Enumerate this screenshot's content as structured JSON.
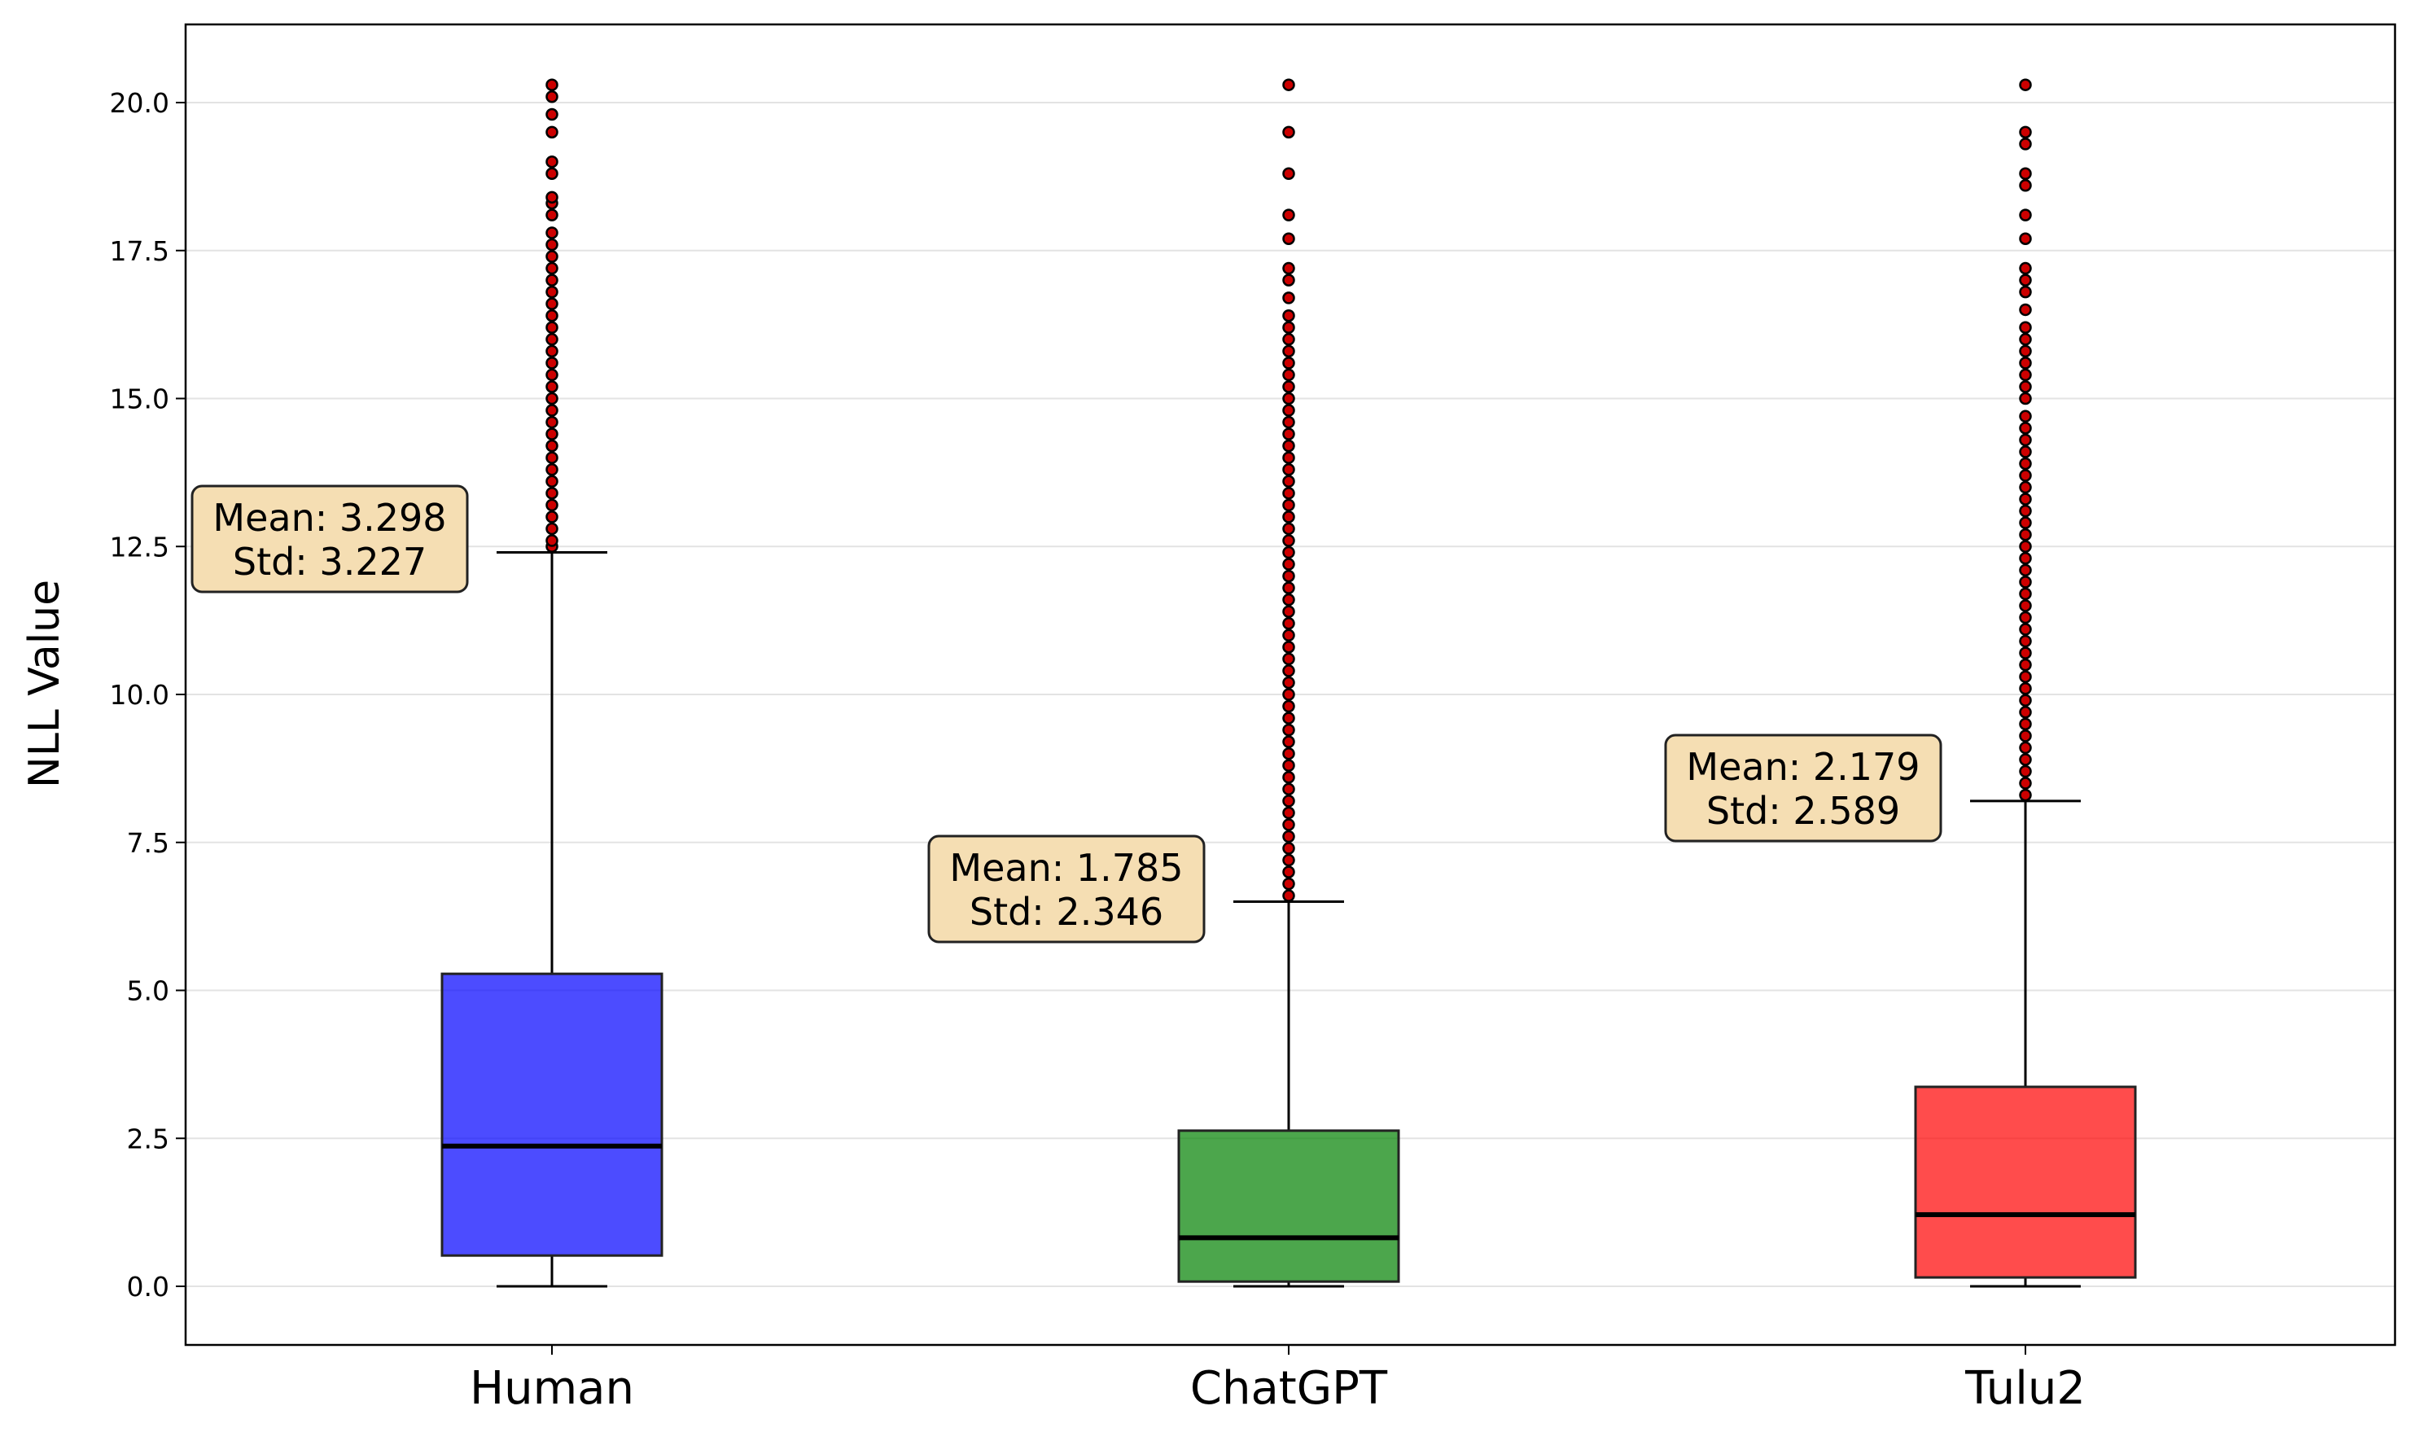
{
  "chart_data": {
    "type": "box",
    "title": "",
    "xlabel": "",
    "ylabel": "NLL Value",
    "ylim": [
      -1.0,
      21.3
    ],
    "yticks": [
      0.0,
      2.5,
      5.0,
      7.5,
      10.0,
      12.5,
      15.0,
      17.5,
      20.0
    ],
    "ytick_labels": [
      "0.0",
      "2.5",
      "5.0",
      "7.5",
      "10.0",
      "12.5",
      "15.0",
      "17.5",
      "20.0"
    ],
    "grid": "horizontal",
    "categories": [
      "Human",
      "ChatGPT",
      "Tulu2"
    ],
    "boxes": [
      {
        "name": "Human",
        "color": "#0000ff",
        "whisker_low": 0.0,
        "q1": 0.52,
        "median": 2.37,
        "q3": 5.28,
        "whisker_high": 12.4,
        "outliers": [
          12.5,
          12.6,
          12.8,
          13.0,
          13.2,
          13.4,
          13.6,
          13.8,
          14.0,
          14.2,
          14.4,
          14.6,
          14.8,
          15.0,
          15.2,
          15.4,
          15.6,
          15.8,
          16.0,
          16.2,
          16.4,
          16.6,
          16.8,
          17.0,
          17.2,
          17.4,
          17.6,
          17.8,
          18.1,
          18.3,
          18.4,
          18.8,
          19.0,
          19.5,
          19.8,
          20.1,
          20.3
        ],
        "annotation": [
          "Mean: 3.298",
          "Std: 3.227"
        ]
      },
      {
        "name": "ChatGPT",
        "color": "#008000",
        "whisker_low": 0.0,
        "q1": 0.08,
        "median": 0.82,
        "q3": 2.63,
        "whisker_high": 6.5,
        "outliers": [
          6.6,
          6.8,
          7.0,
          7.2,
          7.4,
          7.6,
          7.8,
          8.0,
          8.2,
          8.4,
          8.6,
          8.8,
          9.0,
          9.2,
          9.4,
          9.6,
          9.8,
          10.0,
          10.2,
          10.4,
          10.6,
          10.8,
          11.0,
          11.2,
          11.4,
          11.6,
          11.8,
          12.0,
          12.2,
          12.4,
          12.6,
          12.8,
          13.0,
          13.2,
          13.4,
          13.6,
          13.8,
          14.0,
          14.2,
          14.4,
          14.6,
          14.8,
          15.0,
          15.2,
          15.4,
          15.6,
          15.8,
          16.0,
          16.2,
          16.4,
          16.7,
          17.0,
          17.2,
          17.7,
          18.1,
          18.8,
          19.5,
          20.3
        ],
        "annotation": [
          "Mean: 1.785",
          "Std: 2.346"
        ]
      },
      {
        "name": "Tulu2",
        "color": "#ff0000",
        "whisker_low": 0.0,
        "q1": 0.15,
        "median": 1.21,
        "q3": 3.37,
        "whisker_high": 8.2,
        "outliers": [
          8.3,
          8.5,
          8.7,
          8.9,
          9.1,
          9.3,
          9.5,
          9.7,
          9.9,
          10.1,
          10.3,
          10.5,
          10.7,
          10.9,
          11.1,
          11.3,
          11.5,
          11.7,
          11.9,
          12.1,
          12.3,
          12.5,
          12.7,
          12.9,
          13.1,
          13.3,
          13.5,
          13.7,
          13.9,
          14.1,
          14.3,
          14.5,
          14.7,
          15.0,
          15.2,
          15.4,
          15.6,
          15.8,
          16.0,
          16.2,
          16.5,
          16.8,
          17.0,
          17.2,
          17.7,
          18.1,
          18.6,
          18.8,
          19.3,
          19.5,
          20.3
        ],
        "annotation": [
          "Mean: 2.179",
          "Std: 2.589"
        ]
      }
    ],
    "annotation_style": {
      "fill": "#f5deb3",
      "stroke": "#222222"
    },
    "outlier_style": {
      "fill": "#cc0000",
      "stroke": "#000000"
    }
  }
}
